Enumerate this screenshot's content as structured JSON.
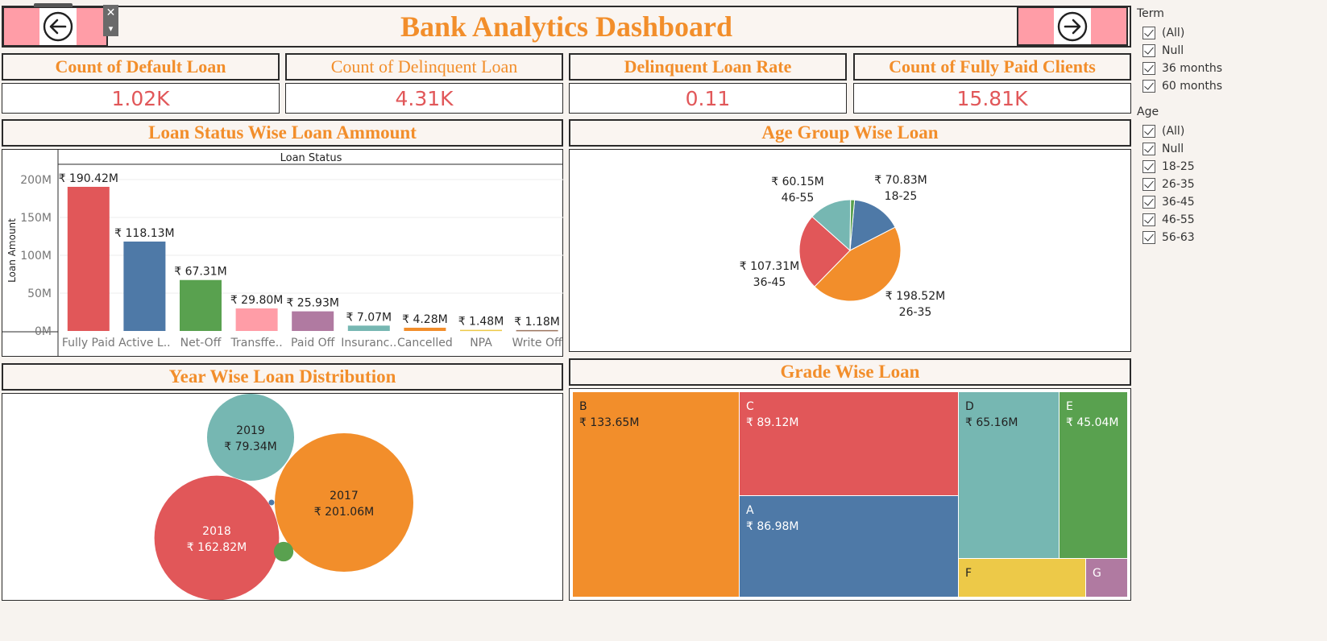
{
  "title": "Bank Analytics Dashboard",
  "nav": {
    "back_icon": "arrow-left-circle-icon",
    "forward_icon": "arrow-right-circle-icon",
    "close_glyph": "✕",
    "menu_glyph": "▾"
  },
  "kpis": [
    {
      "label": "Count of Default Loan",
      "value": "1.02K"
    },
    {
      "label": "Count of Delinquent Loan",
      "value": "4.31K"
    },
    {
      "label": "Delinquent Loan Rate",
      "value": "0.11"
    },
    {
      "label": "Count of Fully Paid Clients",
      "value": "15.81K"
    }
  ],
  "sections": {
    "loan_status": "Loan Status Wise Loan Ammount",
    "age_group": "Age Group Wise Loan",
    "year": "Year Wise Loan Distribution",
    "grade": "Grade Wise Loan"
  },
  "filters": {
    "term": {
      "title": "Term",
      "items": [
        "(All)",
        "Null",
        "36 months",
        "60 months"
      ]
    },
    "age": {
      "title": "Age",
      "items": [
        "(All)",
        "Null",
        "18-25",
        "26-35",
        "36-45",
        "46-55",
        "56-63"
      ]
    }
  },
  "chart_data": [
    {
      "type": "bar",
      "header": "Loan Status",
      "ylabel": "Loan Amount",
      "yticks": [
        "200M",
        "150M",
        "100M",
        "50M",
        "0M"
      ],
      "ylim": [
        0,
        200
      ],
      "categories": [
        "Fully Paid",
        "Active L..",
        "Net-Off",
        "Transffe..",
        "Paid Off",
        "Insuranc..",
        "Cancelled",
        "NPA",
        "Write Off"
      ],
      "values": [
        190.42,
        118.13,
        67.31,
        29.8,
        25.93,
        7.07,
        4.28,
        1.48,
        1.18
      ],
      "labels": [
        "₹ 190.42M",
        "₹ 118.13M",
        "₹ 67.31M",
        "₹ 29.80M",
        "₹ 25.93M",
        "₹ 7.07M",
        "₹ 4.28M",
        "₹ 1.48M",
        "₹ 1.18M"
      ],
      "colors": [
        "#e15759",
        "#4e79a7",
        "#59a14f",
        "#ff9da7",
        "#b07aa1",
        "#76b7b2",
        "#f28e2b",
        "#edc948",
        "#9c755f"
      ]
    },
    {
      "type": "pie",
      "slices": [
        {
          "group": "18-25",
          "value": 70.83,
          "label": "₹ 70.83M",
          "color": "#4e79a7"
        },
        {
          "group": "26-35",
          "value": 198.52,
          "label": "₹ 198.52M",
          "color": "#f28e2b"
        },
        {
          "group": "36-45",
          "value": 107.31,
          "label": "₹ 107.31M",
          "color": "#e15759"
        },
        {
          "group": "46-55",
          "value": 60.15,
          "label": "₹ 60.15M",
          "color": "#76b7b2"
        },
        {
          "group": "56-63",
          "value": 5.5,
          "label": "",
          "color": "#59a14f"
        }
      ]
    },
    {
      "type": "bubble",
      "bubbles": [
        {
          "year": "2019",
          "label": "₹ 79.34M",
          "value": 79.34,
          "color": "#76b7b2"
        },
        {
          "year": "2017",
          "label": "₹ 201.06M",
          "value": 201.06,
          "color": "#f28e2b"
        },
        {
          "year": "2018",
          "label": "₹ 162.82M",
          "value": 162.82,
          "color": "#e15759"
        },
        {
          "year": "",
          "label": "",
          "value": 4.0,
          "color": "#59a14f"
        },
        {
          "year": "",
          "label": "",
          "value": 0.3,
          "color": "#4e79a7"
        }
      ]
    },
    {
      "type": "treemap",
      "cells": [
        {
          "grade": "B",
          "label": "₹ 133.65M",
          "value": 133.65,
          "color": "#f28e2b"
        },
        {
          "grade": "C",
          "label": "₹ 89.12M",
          "value": 89.12,
          "color": "#e15759"
        },
        {
          "grade": "A",
          "label": "₹ 86.98M",
          "value": 86.98,
          "color": "#4e79a7"
        },
        {
          "grade": "D",
          "label": "₹ 65.16M",
          "value": 65.16,
          "color": "#76b7b2"
        },
        {
          "grade": "E",
          "label": "₹ 45.04M",
          "value": 45.04,
          "color": "#59a14f"
        },
        {
          "grade": "F",
          "label": "",
          "value": 0,
          "color": "#edc948"
        },
        {
          "grade": "G",
          "label": "",
          "value": 0,
          "color": "#b07aa1"
        }
      ]
    }
  ]
}
